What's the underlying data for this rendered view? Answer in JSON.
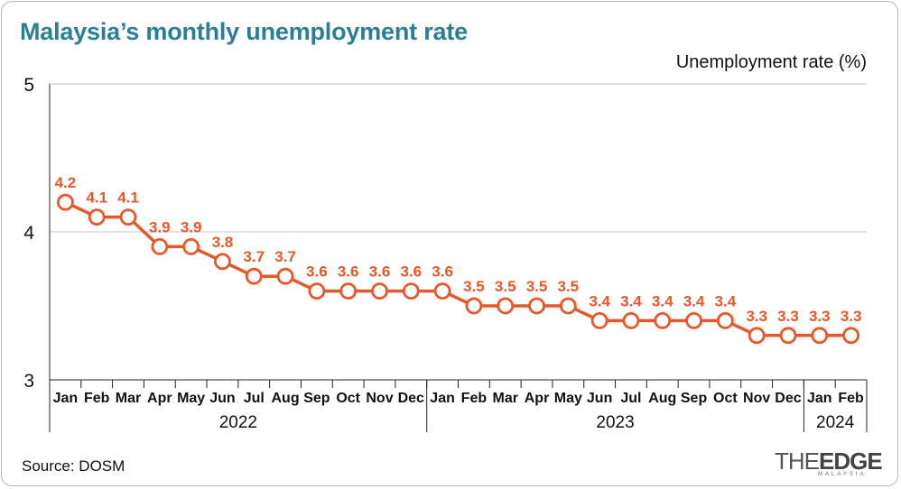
{
  "title": "Malaysia’s monthly unemployment rate",
  "unit_label": "Unemployment rate (%)",
  "source": "Source: DOSM",
  "logo": {
    "the": "THE",
    "edge": "EDGE",
    "sub": "MALAYSIA"
  },
  "colors": {
    "title": "#2a7f97",
    "series": "#e8572a",
    "grid": "#c8c8c8"
  },
  "chart_data": {
    "type": "line",
    "title": "Malaysia’s monthly unemployment rate",
    "ylabel": "Unemployment rate (%)",
    "ylim": [
      3,
      5
    ],
    "yticks": [
      3,
      4,
      5
    ],
    "grid": true,
    "x": [
      "Jan",
      "Feb",
      "Mar",
      "Apr",
      "May",
      "Jun",
      "Jul",
      "Aug",
      "Sep",
      "Oct",
      "Nov",
      "Dec",
      "Jan",
      "Feb",
      "Mar",
      "Apr",
      "May",
      "Jun",
      "Jul",
      "Aug",
      "Sep",
      "Oct",
      "Nov",
      "Dec",
      "Jan",
      "Feb"
    ],
    "years": [
      {
        "label": "2022",
        "start": 0,
        "end": 11
      },
      {
        "label": "2023",
        "start": 12,
        "end": 23
      },
      {
        "label": "2024",
        "start": 24,
        "end": 25
      }
    ],
    "series": [
      {
        "values": [
          4.2,
          4.1,
          4.1,
          3.9,
          3.9,
          3.8,
          3.7,
          3.7,
          3.6,
          3.6,
          3.6,
          3.6,
          3.6,
          3.5,
          3.5,
          3.5,
          3.5,
          3.4,
          3.4,
          3.4,
          3.4,
          3.4,
          3.3,
          3.3,
          3.3,
          3.3
        ]
      }
    ]
  }
}
